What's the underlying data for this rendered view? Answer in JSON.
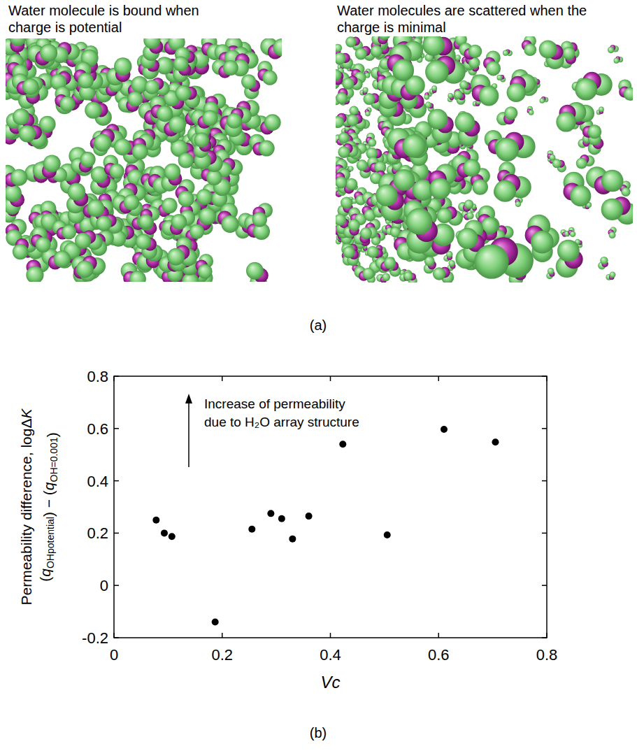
{
  "panel_a": {
    "label": "(a)",
    "captions": [
      "Water molecule is bound when charge is potential",
      "Water molecules are scattered when the charge is minimal"
    ]
  },
  "panel_b": {
    "label": "(b)"
  },
  "chart_data": {
    "type": "scatter",
    "xlabel": "Vc",
    "ylabel": [
      "Permeability difference, logΔK",
      "(qOHpotential) − (qOH=0.001)"
    ],
    "annotation": [
      "Increase of permeability",
      "due to H₂O array structure"
    ],
    "x": [
      0.078,
      0.093,
      0.107,
      0.187,
      0.255,
      0.29,
      0.31,
      0.33,
      0.36,
      0.423,
      0.505,
      0.61,
      0.705
    ],
    "values": [
      0.25,
      0.2,
      0.187,
      -0.14,
      0.215,
      0.275,
      0.255,
      0.178,
      0.265,
      0.54,
      0.193,
      0.597,
      0.548
    ],
    "color": "#000000",
    "marker": "circle",
    "xlim": [
      0,
      0.8
    ],
    "ylim": [
      -0.2,
      0.8
    ],
    "xticks": [
      0,
      0.2,
      0.4,
      0.6,
      0.8
    ],
    "yticks": [
      -0.2,
      0,
      0.2,
      0.4,
      0.6,
      0.8
    ],
    "grid": false
  }
}
